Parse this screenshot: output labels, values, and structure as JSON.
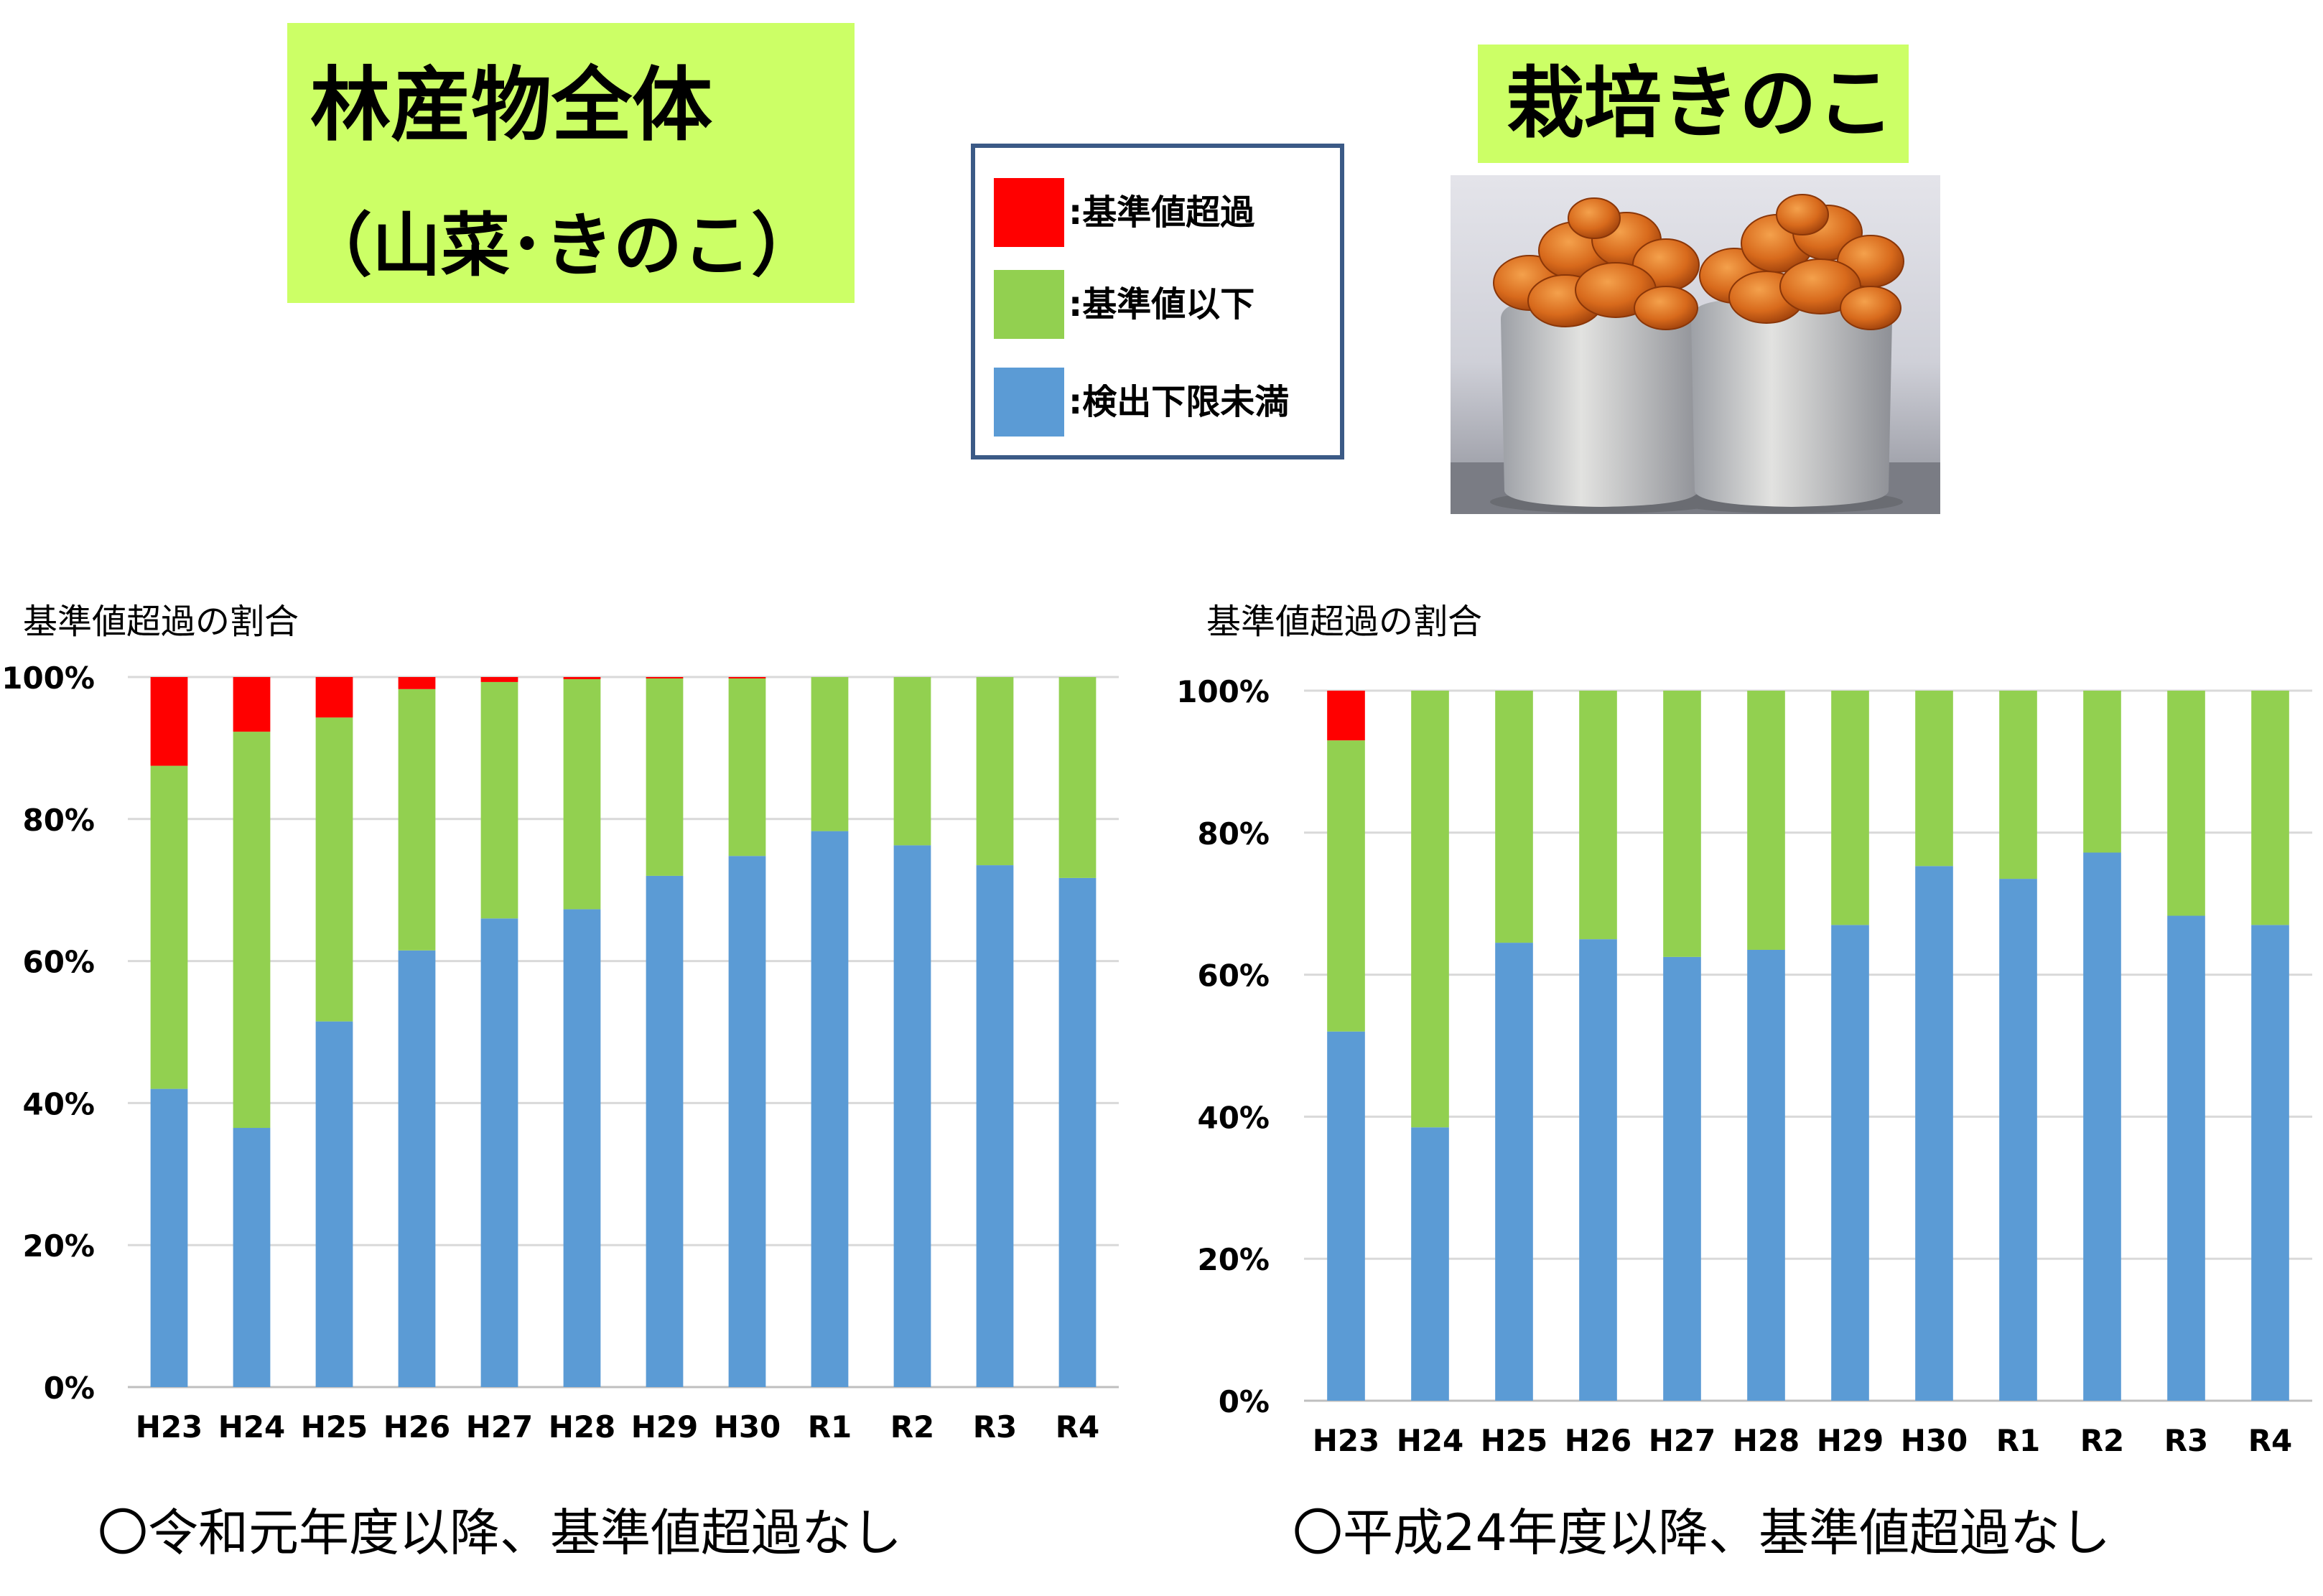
{
  "titles": {
    "left_line1": "林産物全体",
    "left_line2": "（山菜･きのこ）",
    "right": "栽培きのこ"
  },
  "legend": [
    {
      "label": ":基準値超過",
      "color": "#ff0000"
    },
    {
      "label": ":基準値以下",
      "color": "#92d050"
    },
    {
      "label": ":検出下限未満",
      "color": "#5b9bd5"
    }
  ],
  "photo": {
    "icon": "mushroom-photo"
  },
  "chart_data": [
    {
      "type": "bar",
      "stacked": true,
      "ylabel": "基準値超過の割合",
      "ylim": [
        0,
        100
      ],
      "yticks": [
        "0%",
        "20%",
        "40%",
        "60%",
        "80%",
        "100%"
      ],
      "categories": [
        "H23",
        "H24",
        "H25",
        "H26",
        "H27",
        "H28",
        "H29",
        "H30",
        "R1",
        "R2",
        "R3",
        "R4"
      ],
      "series": [
        {
          "name": ":検出下限未満",
          "color": "#5b9bd5",
          "values": [
            42,
            36.5,
            51.5,
            61.5,
            66,
            67.3,
            72,
            74.8,
            78.3,
            76.3,
            73.5,
            71.7
          ]
        },
        {
          "name": ":基準値以下",
          "color": "#92d050",
          "values": [
            45.5,
            55.8,
            42.8,
            36.8,
            33.3,
            32.4,
            27.8,
            25,
            21.7,
            23.7,
            26.5,
            28.3
          ]
        },
        {
          "name": ":基準値超過",
          "color": "#ff0000",
          "values": [
            12.5,
            7.7,
            5.7,
            1.7,
            0.7,
            0.3,
            0.2,
            0.2,
            0,
            0,
            0,
            0
          ]
        }
      ],
      "grid": true,
      "caption": "〇令和元年度以降、基準値超過なし"
    },
    {
      "type": "bar",
      "stacked": true,
      "ylabel": "基準値超過の割合",
      "ylim": [
        0,
        100
      ],
      "yticks": [
        "0%",
        "20%",
        "40%",
        "60%",
        "80%",
        "100%"
      ],
      "categories": [
        "H23",
        "H24",
        "H25",
        "H26",
        "H27",
        "H28",
        "H29",
        "H30",
        "R1",
        "R2",
        "R3",
        "R4"
      ],
      "series": [
        {
          "name": ":検出下限未満",
          "color": "#5b9bd5",
          "values": [
            52,
            38.5,
            64.5,
            65,
            62.5,
            63.5,
            67,
            75.3,
            73.5,
            77.2,
            68.3,
            67
          ]
        },
        {
          "name": ":基準値以下",
          "color": "#92d050",
          "values": [
            41,
            61.5,
            35.5,
            35,
            37.5,
            36.5,
            33,
            24.7,
            26.5,
            22.8,
            31.7,
            33
          ]
        },
        {
          "name": ":基準値超過",
          "color": "#ff0000",
          "values": [
            7,
            0,
            0,
            0,
            0,
            0,
            0,
            0,
            0,
            0,
            0,
            0
          ]
        }
      ],
      "grid": true,
      "caption": "〇平成24年度以降、基準値超過なし"
    }
  ]
}
